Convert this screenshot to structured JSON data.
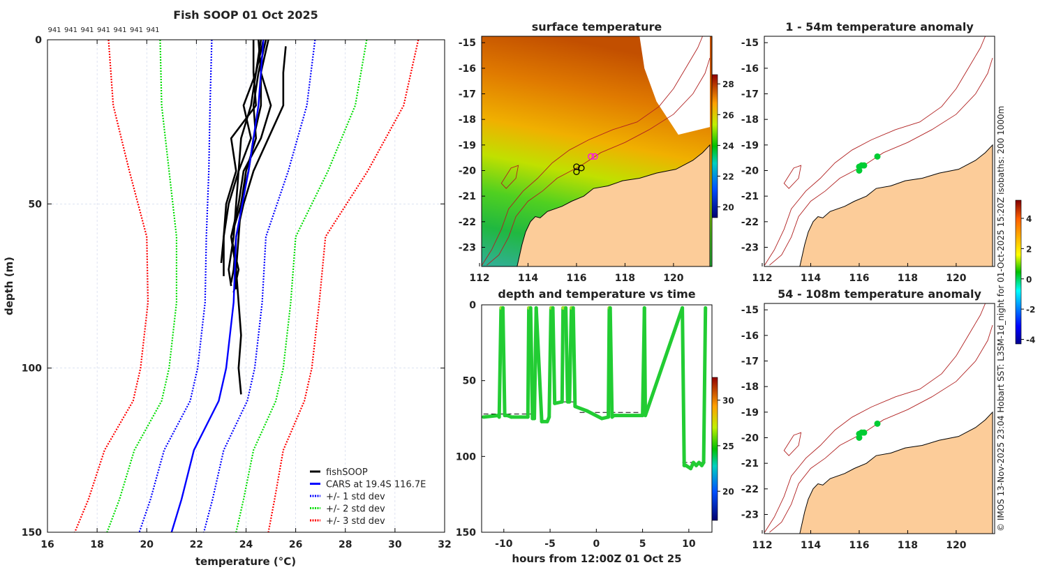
{
  "figure": {
    "footer_text": "© IMOS 13-Nov-2025 23:04 Hobart SST: L3SM-1d_night for 01-Oct-2025 15:20Z isobaths: 200  1000m"
  },
  "chart_data": [
    {
      "type": "line",
      "title": "Fish SOOP 01 Oct 2025",
      "xlabel": "temperature (°C)",
      "ylabel": "depth (m)",
      "xlim": [
        16,
        32
      ],
      "ylim": [
        150,
        0
      ],
      "xticks": [
        "16",
        "18",
        "20",
        "22",
        "24",
        "26",
        "28",
        "30",
        "32"
      ],
      "yticks": [
        "0",
        "50",
        "100",
        "150"
      ],
      "grid": true,
      "top_labels": [
        "941",
        "941",
        "941",
        "941",
        "941",
        "941",
        "941"
      ],
      "legend": {
        "placement": "bottom-right",
        "entries": [
          {
            "label": "fishSOOP",
            "color": "#000000",
            "style": "solid"
          },
          {
            "label": "CARS at 19.4S 116.7E",
            "color": "#0000ff",
            "style": "solid"
          },
          {
            "label": "+/- 1 std dev",
            "color": "#0000ff",
            "style": "dotted"
          },
          {
            "label": "+/- 2 std dev",
            "color": "#00dd00",
            "style": "dotted"
          },
          {
            "label": "+/- 3 std dev",
            "color": "#ff0000",
            "style": "dotted"
          }
        ]
      },
      "cars": {
        "depth": [
          0,
          20,
          40,
          60,
          80,
          100,
          110,
          125,
          140,
          150
        ],
        "mean": [
          24.7,
          24.5,
          24.1,
          23.6,
          23.5,
          23.2,
          22.9,
          21.9,
          21.4,
          21.0
        ],
        "std": [
          2.08,
          1.95,
          1.6,
          1.2,
          1.15,
          1.15,
          1.15,
          1.2,
          1.25,
          1.3
        ]
      },
      "fishsoop_profiles": [
        {
          "depth": [
            0,
            10,
            20,
            30,
            40,
            50,
            60,
            70,
            75
          ],
          "temp": [
            24.6,
            24.4,
            24.2,
            23.8,
            23.7,
            23.6,
            23.5,
            23.3,
            23.4
          ]
        },
        {
          "depth": [
            0,
            10,
            20,
            30,
            40,
            50,
            60,
            70,
            76
          ],
          "temp": [
            24.8,
            24.5,
            24.3,
            24.4,
            24.0,
            23.8,
            23.4,
            23.6,
            23.6
          ]
        },
        {
          "depth": [
            0,
            10,
            20,
            30,
            40,
            50,
            60,
            68
          ],
          "temp": [
            24.3,
            24.3,
            24.4,
            23.4,
            23.6,
            23.2,
            23.1,
            23.0
          ]
        },
        {
          "depth": [
            0,
            10,
            20,
            30,
            40,
            50,
            60,
            70,
            80,
            90,
            100,
            108
          ],
          "temp": [
            24.9,
            24.6,
            24.6,
            24.3,
            24.1,
            23.8,
            23.7,
            23.6,
            23.7,
            23.8,
            23.7,
            23.8
          ]
        },
        {
          "depth": [
            2,
            10,
            20,
            30,
            40,
            50,
            60,
            70,
            74
          ],
          "temp": [
            25.6,
            25.5,
            25.5,
            24.9,
            24.3,
            23.9,
            23.6,
            23.5,
            23.4
          ]
        },
        {
          "depth": [
            0,
            10,
            20,
            30,
            40,
            50,
            60,
            72
          ],
          "temp": [
            24.7,
            24.4,
            23.9,
            24.2,
            23.7,
            23.3,
            23.1,
            23.1
          ]
        },
        {
          "depth": [
            0,
            10,
            20,
            30,
            40,
            50,
            60,
            70,
            77
          ],
          "temp": [
            24.5,
            24.6,
            25.0,
            24.6,
            23.9,
            23.7,
            23.4,
            23.7,
            23.5
          ]
        }
      ]
    },
    {
      "type": "heatmap",
      "title": "surface temperature",
      "xticks": [
        "112",
        "114",
        "116",
        "118",
        "120"
      ],
      "yticks": [
        "-15",
        "-16",
        "-17",
        "-18",
        "-19",
        "-20",
        "-21",
        "-22",
        "-23"
      ],
      "colorbar": {
        "range": [
          19.3,
          28.6
        ],
        "ticks": [
          "20",
          "22",
          "24",
          "26",
          "28"
        ]
      },
      "markers_lonlat": [
        [
          116.6,
          -19.45
        ],
        [
          116.75,
          -19.45
        ],
        [
          116.0,
          -19.85
        ],
        [
          116.2,
          -19.9
        ],
        [
          116.0,
          -20.05
        ]
      ]
    },
    {
      "type": "scatter",
      "title": "depth and temperature vs time",
      "xlabel": "hours from 12:00Z 01 Oct 25",
      "xlim": [
        -12.4,
        12.5
      ],
      "ylim": [
        150,
        0
      ],
      "xticks": [
        "-10",
        "-5",
        "0",
        "5",
        "10"
      ],
      "yticks": [
        "0",
        "50",
        "100",
        "150"
      ],
      "colorbar": {
        "range": [
          16.8,
          32.5
        ],
        "ticks": [
          "20",
          "25",
          "30"
        ]
      },
      "track": {
        "hours": [
          -12.2,
          -10.6,
          -10.5,
          -10.3,
          -10.1,
          -9.9,
          -9.6,
          -9.2,
          -7.4,
          -7.3,
          -7.1,
          -6.9,
          -6.7,
          -6.5,
          -5.9,
          -5.3,
          -5.1,
          -4.9,
          -4.7,
          -4.5,
          -3.7,
          -3.6,
          -3.3,
          -3.1,
          -2.9,
          -2.7,
          -2.5,
          -2.3,
          -1.0,
          0.6,
          1.3,
          1.4,
          1.5,
          1.7,
          1.9,
          2.1,
          5.0,
          5.2,
          5.3,
          9.3,
          9.5,
          9.7,
          10.2,
          10.5,
          10.8,
          11.1,
          11.4,
          11.6,
          11.8
        ],
        "depth": [
          74,
          73,
          74,
          2,
          2,
          73,
          73,
          74,
          74,
          2,
          2,
          75,
          75,
          2,
          77,
          77,
          74,
          2,
          2,
          65,
          64,
          2,
          2,
          64,
          64,
          2,
          2,
          67,
          70,
          75,
          74,
          2,
          2,
          74,
          73,
          73,
          73,
          2,
          73,
          2,
          106,
          106,
          108,
          104,
          106,
          104,
          106,
          104,
          2
        ],
        "temp": [
          24,
          24,
          24,
          26,
          26,
          24,
          24,
          24,
          24,
          26,
          26,
          24,
          24,
          26,
          24,
          24,
          24,
          26,
          26,
          24,
          24,
          26,
          26,
          24,
          24,
          26,
          26,
          24,
          24,
          24,
          24,
          26,
          26,
          24,
          24,
          24,
          24,
          26,
          24,
          27,
          23.5,
          23.5,
          23.5,
          23.5,
          23.5,
          23.5,
          23.5,
          23.5,
          27
        ]
      },
      "reference_depth": [
        {
          "hours": [
            -12.2,
            -6.6
          ],
          "depth": 72
        },
        {
          "hours": [
            -1.8,
            5.2
          ],
          "depth": 71
        },
        {
          "hours": [
            -3.7,
            -2.4
          ],
          "depth": 64
        },
        {
          "hours": [
            9.3,
            11.8
          ],
          "depth": 104
        }
      ]
    },
    {
      "type": "heatmap",
      "title": "1 - 54m temperature anomaly",
      "xticks": [
        "112",
        "114",
        "116",
        "118",
        "120"
      ],
      "yticks": [
        "-15",
        "-16",
        "-17",
        "-18",
        "-19",
        "-20",
        "-21",
        "-22",
        "-23"
      ],
      "colorbar": {
        "range": [
          -4.3,
          5.2
        ],
        "ticks": [
          "4",
          "2",
          "0",
          "-2",
          "-4"
        ]
      },
      "points_lonlat": [
        [
          116.0,
          -19.85
        ],
        [
          116.1,
          -19.8
        ],
        [
          116.2,
          -19.8
        ],
        [
          116.0,
          -20.0
        ],
        [
          116.75,
          -19.45
        ]
      ]
    },
    {
      "type": "heatmap",
      "title": "54 - 108m temperature anomaly",
      "xticks": [
        "112",
        "114",
        "116",
        "118",
        "120"
      ],
      "yticks": [
        "-15",
        "-16",
        "-17",
        "-18",
        "-19",
        "-20",
        "-21",
        "-22",
        "-23"
      ],
      "points_lonlat": [
        [
          116.0,
          -19.85
        ],
        [
          116.1,
          -19.8
        ],
        [
          116.2,
          -19.8
        ],
        [
          116.0,
          -20.0
        ],
        [
          116.75,
          -19.45
        ]
      ]
    }
  ]
}
